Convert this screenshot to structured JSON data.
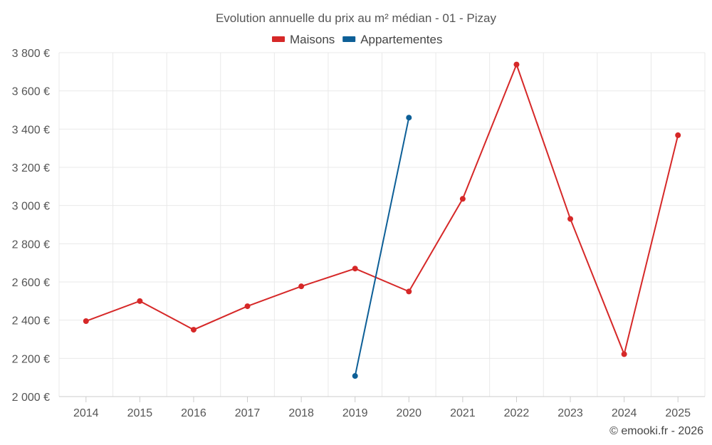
{
  "chart_data": {
    "type": "line",
    "title": "Evolution annuelle du prix au m² médian - 01 - Pizay",
    "categories": [
      "2014",
      "2015",
      "2016",
      "2017",
      "2018",
      "2019",
      "2020",
      "2021",
      "2022",
      "2023",
      "2024",
      "2025"
    ],
    "series": [
      {
        "name": "Maisons",
        "color": "#d62828",
        "values": [
          2395,
          2500,
          2350,
          2473,
          2577,
          2670,
          2550,
          3035,
          3738,
          2930,
          2222,
          3368
        ]
      },
      {
        "name": "Appartementes",
        "color": "#0d5f97",
        "values": [
          null,
          null,
          null,
          null,
          null,
          2108,
          3460,
          null,
          null,
          null,
          null,
          null
        ]
      }
    ],
    "ylim": [
      2000,
      3800
    ],
    "yticks": [
      2000,
      2200,
      2400,
      2600,
      2800,
      3000,
      3200,
      3400,
      3600,
      3800
    ],
    "ytick_labels": [
      "2 000 €",
      "2 200 €",
      "2 400 €",
      "2 600 €",
      "2 800 €",
      "3 000 €",
      "3 200 €",
      "3 400 €",
      "3 600 €",
      "3 800 €"
    ],
    "xlabel": "",
    "ylabel": "",
    "grid": true,
    "legend_position": "top-center"
  },
  "credit": "© emooki.fr - 2026"
}
